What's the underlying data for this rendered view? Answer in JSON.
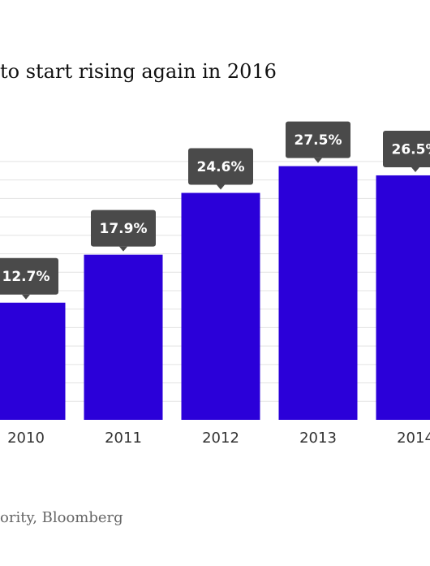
{
  "title": "to start rising again in 2016",
  "source": "ority, Bloomberg",
  "chart_data": {
    "type": "bar",
    "title": "to start rising again in 2016",
    "categories": [
      "2010",
      "2011",
      "2012",
      "2013",
      "2014"
    ],
    "values": [
      12.7,
      17.9,
      24.6,
      27.5,
      26.5
    ],
    "data_labels": [
      "12.7%",
      "17.9%",
      "24.6%",
      "27.5%",
      "26.5%"
    ],
    "ylim": [
      0,
      28
    ],
    "grid": true,
    "bar_color": "#2B00D9",
    "label_bg_color": "#4A4A4A"
  }
}
